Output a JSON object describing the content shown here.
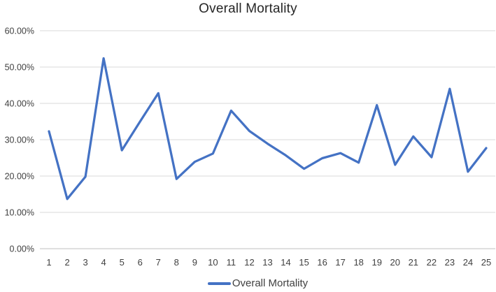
{
  "title": "Overall Mortality",
  "legend": {
    "label": "Overall Mortality"
  },
  "colors": {
    "line": "#4472C4",
    "gridline": "#D9D9D9",
    "axis_line": "#BFBFBF",
    "tick_text": "#404040",
    "title_text": "#262626"
  },
  "chart_data": {
    "type": "line",
    "title": "Overall Mortality",
    "categories": [
      1,
      2,
      3,
      4,
      5,
      6,
      7,
      8,
      9,
      10,
      11,
      12,
      13,
      14,
      15,
      16,
      17,
      18,
      19,
      20,
      21,
      22,
      23,
      24,
      25
    ],
    "series": [
      {
        "name": "Overall Mortality",
        "values": [
          32.3,
          13.7,
          19.8,
          52.4,
          27.1,
          35.0,
          42.8,
          19.2,
          23.9,
          26.2,
          38.0,
          32.4,
          28.9,
          25.7,
          22.0,
          24.9,
          26.3,
          23.7,
          39.5,
          23.1,
          30.9,
          25.2,
          44.0,
          21.2,
          27.7
        ]
      }
    ],
    "ylim": [
      0,
      60
    ],
    "y_ticks": [
      0,
      10,
      20,
      30,
      40,
      50,
      60
    ],
    "y_tick_labels": [
      "0.00%",
      "10.00%",
      "20.00%",
      "30.00%",
      "40.00%",
      "50.00%",
      "60.00%"
    ],
    "grid": true,
    "legend_position": "bottom"
  }
}
